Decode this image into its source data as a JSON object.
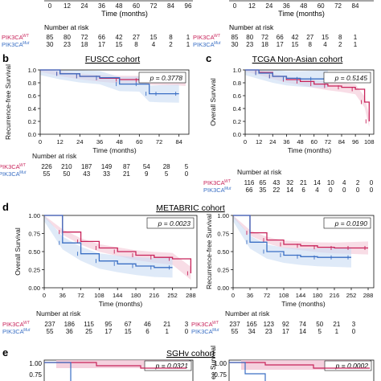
{
  "colors": {
    "wt": "#c8235a",
    "mut": "#3a6fc4",
    "wt_band": "#f3c6d6",
    "mut_band": "#c9dcf3",
    "text": "#111111"
  },
  "top_strip": {
    "left_ticks": [
      "0",
      "12",
      "24",
      "36",
      "48",
      "60",
      "72",
      "84",
      "96"
    ],
    "right_ticks": [
      "0",
      "12",
      "24",
      "36",
      "48",
      "60",
      "72",
      "84"
    ],
    "xlabel": "Time (months)",
    "risk_title": "Number at risk",
    "left_risk": {
      "wt_label": "PIK3CA",
      "wt_sup": "WT",
      "mut_label": "PIK3CA",
      "mut_sup": "Mut",
      "wt": [
        "85",
        "80",
        "72",
        "66",
        "42",
        "27",
        "15",
        "8",
        "1"
      ],
      "mut": [
        "30",
        "23",
        "18",
        "17",
        "15",
        "8",
        "4",
        "2",
        "1"
      ]
    },
    "right_risk": {
      "wt_label": "PIK3CA",
      "wt_sup": "WT",
      "mut_label": "PIK3CA",
      "mut_sup": "Mut",
      "wt": [
        "85",
        "80",
        "72",
        "66",
        "42",
        "27",
        "15",
        "8",
        "1"
      ],
      "mut": [
        "30",
        "23",
        "18",
        "17",
        "15",
        "8",
        "4",
        "2",
        "1"
      ]
    }
  },
  "panels": {
    "b": {
      "letter": "b",
      "title": "FUSCC cohort",
      "ylabel": "Recurrence-free Survival",
      "pvalue": "p = 0.3778",
      "xlabel": "Time (months)",
      "xticks": [
        "0",
        "12",
        "24",
        "36",
        "48",
        "60",
        "72",
        "84"
      ],
      "yticks": [
        "0.0",
        "0.2",
        "0.4",
        "0.6",
        "0.8",
        "1.0"
      ],
      "risk_title": "Number at risk",
      "wt": [
        "226",
        "210",
        "187",
        "149",
        "87",
        "54",
        "28",
        "5"
      ],
      "mut": [
        "55",
        "50",
        "43",
        "33",
        "21",
        "9",
        "5",
        "0"
      ]
    },
    "c": {
      "letter": "c",
      "title": "TCGA Non-Asian cohort",
      "ylabel": "Overall Survival",
      "pvalue": "p = 0.5145",
      "xlabel": "Time (months)",
      "xticks": [
        "0",
        "12",
        "24",
        "36",
        "48",
        "60",
        "72",
        "84",
        "96",
        "108"
      ],
      "yticks": [
        "0.0",
        "0.2",
        "0.4",
        "0.6",
        "0.8",
        "1.0"
      ],
      "risk_title": "Number at risk",
      "wt": [
        "116",
        "65",
        "43",
        "32",
        "21",
        "14",
        "10",
        "4",
        "2",
        "0"
      ],
      "mut": [
        "66",
        "35",
        "22",
        "14",
        "6",
        "4",
        "0",
        "0",
        "0",
        "0"
      ]
    },
    "d": {
      "letter": "d",
      "title": "METABRIC cohort",
      "left": {
        "ylabel": "Overall Survival",
        "pvalue": "p = 0.0023",
        "xlabel": "Time (months)",
        "xticks": [
          "0",
          "36",
          "72",
          "108",
          "144",
          "180",
          "216",
          "252",
          "288"
        ],
        "yticks": [
          "0.00",
          "0.25",
          "0.50",
          "0.75",
          "1.00"
        ],
        "risk_title": "Number at risk",
        "wt": [
          "237",
          "186",
          "115",
          "95",
          "67",
          "46",
          "21",
          "3"
        ],
        "mut": [
          "55",
          "36",
          "25",
          "17",
          "15",
          "6",
          "1",
          "0"
        ]
      },
      "right": {
        "ylabel": "Recurrence-free Survival",
        "pvalue": "p = 0.0190",
        "xlabel": "Time (months)",
        "xticks": [
          "0",
          "36",
          "72",
          "108",
          "144",
          "180",
          "216",
          "252",
          "288"
        ],
        "yticks": [
          "0.00",
          "0.25",
          "0.50",
          "0.75",
          "1.00"
        ],
        "risk_title": "Number at risk",
        "wt": [
          "237",
          "165",
          "123",
          "92",
          "74",
          "50",
          "21",
          "3"
        ],
        "mut": [
          "55",
          "34",
          "23",
          "17",
          "14",
          "5",
          "1",
          "0"
        ]
      }
    },
    "e": {
      "letter": "e",
      "title": "SGHv cohort",
      "left": {
        "pvalue": "p = 0.0321",
        "yticks": [
          "1.00",
          "0.75"
        ]
      },
      "right": {
        "pvalue": "p = 0.0002",
        "ylabel_partial": "ee Survival",
        "yticks": [
          "1.00",
          "0.75"
        ]
      }
    }
  },
  "chart_data": [
    {
      "type": "line",
      "panel": "b",
      "ylim": [
        0,
        1
      ],
      "xlim": [
        0,
        90
      ],
      "series": [
        {
          "name": "PIK3CA WT",
          "x": [
            0,
            12,
            24,
            36,
            48,
            60,
            72,
            84,
            88
          ],
          "y": [
            1.0,
            0.94,
            0.9,
            0.87,
            0.85,
            0.84,
            0.84,
            0.84,
            0.84
          ]
        },
        {
          "name": "PIK3CA Mut",
          "x": [
            0,
            12,
            24,
            36,
            48,
            60,
            66,
            72,
            84
          ],
          "y": [
            1.0,
            0.94,
            0.9,
            0.88,
            0.78,
            0.78,
            0.63,
            0.63,
            0.63
          ]
        }
      ]
    },
    {
      "type": "line",
      "panel": "c",
      "ylim": [
        0,
        1
      ],
      "xlim": [
        0,
        112
      ],
      "series": [
        {
          "name": "PIK3CA WT",
          "x": [
            0,
            12,
            24,
            36,
            48,
            60,
            72,
            84,
            96,
            104,
            108
          ],
          "y": [
            1.0,
            0.96,
            0.9,
            0.85,
            0.82,
            0.78,
            0.75,
            0.73,
            0.7,
            0.5,
            0.2
          ]
        },
        {
          "name": "PIK3CA Mut",
          "x": [
            0,
            12,
            24,
            36,
            48,
            60,
            72
          ],
          "y": [
            1.0,
            0.95,
            0.9,
            0.87,
            0.86,
            0.86,
            0.86
          ]
        }
      ]
    },
    {
      "type": "line",
      "panel": "d-left",
      "ylim": [
        0,
        1
      ],
      "xlim": [
        0,
        300
      ],
      "series": [
        {
          "name": "PIK3CA WT",
          "x": [
            0,
            36,
            72,
            108,
            144,
            180,
            216,
            252,
            288
          ],
          "y": [
            1.0,
            0.77,
            0.64,
            0.55,
            0.5,
            0.45,
            0.42,
            0.4,
            0.2
          ]
        },
        {
          "name": "PIK3CA Mut",
          "x": [
            0,
            36,
            72,
            108,
            144,
            180,
            216,
            252
          ],
          "y": [
            1.0,
            0.62,
            0.47,
            0.37,
            0.33,
            0.3,
            0.28,
            0.28
          ]
        }
      ]
    },
    {
      "type": "line",
      "panel": "d-right",
      "ylim": [
        0,
        1
      ],
      "xlim": [
        0,
        300
      ],
      "series": [
        {
          "name": "PIK3CA WT",
          "x": [
            0,
            36,
            72,
            108,
            144,
            180,
            216,
            252,
            288
          ],
          "y": [
            1.0,
            0.76,
            0.66,
            0.6,
            0.58,
            0.56,
            0.55,
            0.55,
            0.55
          ]
        },
        {
          "name": "PIK3CA Mut",
          "x": [
            0,
            36,
            72,
            108,
            144,
            180,
            216,
            252
          ],
          "y": [
            1.0,
            0.63,
            0.5,
            0.45,
            0.43,
            0.42,
            0.42,
            0.42
          ]
        }
      ]
    }
  ]
}
